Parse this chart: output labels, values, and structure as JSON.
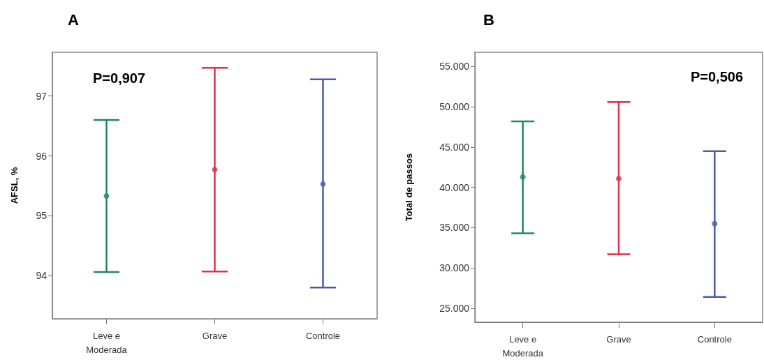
{
  "chart_data": [
    {
      "type": "scatter",
      "title": "A",
      "ylabel": "AFSL, %",
      "categories": [
        "Leve e\nModerada",
        "Grave",
        "Controle"
      ],
      "values": [
        95.33,
        95.77,
        95.53
      ],
      "colors": [
        "#1f8a5a",
        "#e0304a",
        "#4a5aa8"
      ],
      "errors": [
        [
          94.06,
          96.6
        ],
        [
          94.07,
          97.47
        ],
        [
          93.8,
          97.28
        ]
      ],
      "ylim": [
        93.28,
        97.73
      ],
      "yticks": [
        94,
        95,
        96,
        97
      ],
      "grid": false,
      "marker": "circle",
      "annotations": [
        "P=0,907"
      ]
    },
    {
      "type": "scatter",
      "title": "B",
      "ylabel": "Total de passos",
      "categories": [
        "Leve e\nModerada",
        "Grave",
        "Controle"
      ],
      "values": [
        41300,
        41100,
        35500
      ],
      "colors": [
        "#1f8a5a",
        "#e0304a",
        "#4a5aa8"
      ],
      "errors": [
        [
          34300,
          48200
        ],
        [
          31700,
          50600
        ],
        [
          26400,
          44500
        ]
      ],
      "ylim": [
        23270,
        56760
      ],
      "yticks": [
        {
          "value": 25000,
          "label": "25.000"
        },
        {
          "value": 30000,
          "label": "30.000"
        },
        {
          "value": 35000,
          "label": "35.000"
        },
        {
          "value": 40000,
          "label": "40.000"
        },
        {
          "value": 45000,
          "label": "45.000"
        },
        {
          "value": 50000,
          "label": "50.000"
        },
        {
          "value": 55000,
          "label": "55.000"
        }
      ],
      "grid": false,
      "marker": "circle",
      "annotations": [
        "P=0,506"
      ]
    }
  ]
}
